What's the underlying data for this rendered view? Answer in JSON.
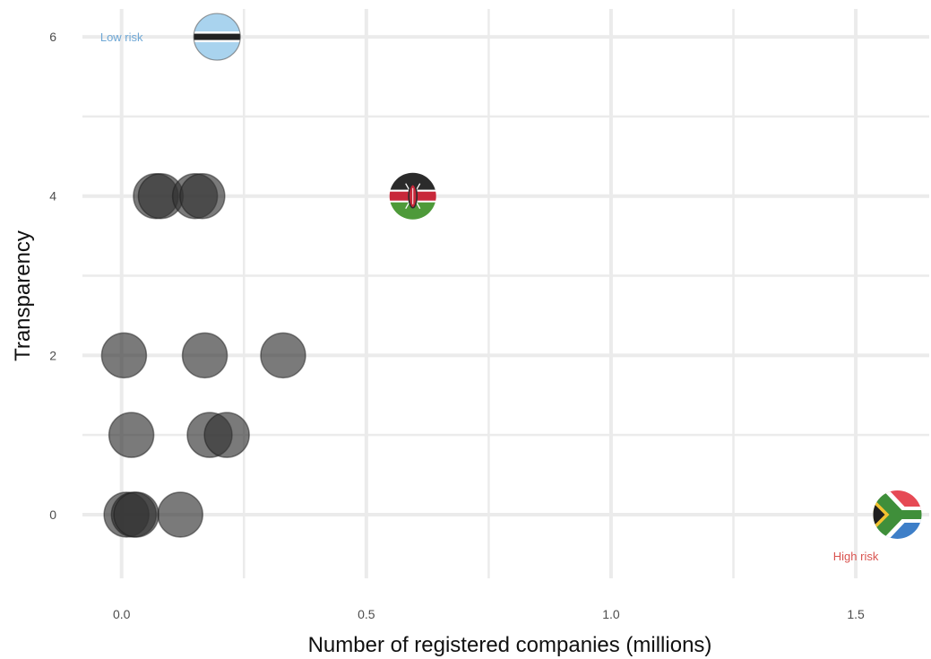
{
  "chart_data": {
    "type": "scatter",
    "title": "",
    "xlabel": "Number of registered companies (millions)",
    "ylabel": "Transparency",
    "xlim": [
      -0.08,
      1.65
    ],
    "ylim": [
      -0.8,
      6.35
    ],
    "x_ticks": [
      0.0,
      0.5,
      1.0,
      1.5
    ],
    "x_tick_labels": [
      "0.0",
      "0.5",
      "1.0",
      "1.5"
    ],
    "y_ticks": [
      0,
      2,
      4,
      6
    ],
    "y_tick_labels": [
      "0",
      "2",
      "4",
      "6"
    ],
    "x_minor_ticks": [
      0.25,
      0.75,
      1.25
    ],
    "y_minor_ticks": [
      1,
      3,
      5
    ],
    "grid": true,
    "legend": "none",
    "points": [
      {
        "x": 0.01,
        "y": 0
      },
      {
        "x": 0.025,
        "y": 0
      },
      {
        "x": 0.03,
        "y": 0
      },
      {
        "x": 0.12,
        "y": 0
      },
      {
        "x": 0.02,
        "y": 1
      },
      {
        "x": 0.18,
        "y": 1
      },
      {
        "x": 0.215,
        "y": 1
      },
      {
        "x": 0.005,
        "y": 2
      },
      {
        "x": 0.17,
        "y": 2
      },
      {
        "x": 0.33,
        "y": 2
      },
      {
        "x": 0.07,
        "y": 4
      },
      {
        "x": 0.08,
        "y": 4
      },
      {
        "x": 0.15,
        "y": 4
      },
      {
        "x": 0.165,
        "y": 4
      }
    ],
    "flag_points": [
      {
        "x": 0.195,
        "y": 6,
        "flag": "botswana-flag-icon"
      },
      {
        "x": 0.595,
        "y": 4,
        "flag": "kenya-flag-icon"
      },
      {
        "x": 1.585,
        "y": 0,
        "flag": "south-africa-flag-icon"
      }
    ],
    "annotations": [
      {
        "text": "Low risk",
        "x": 0.0,
        "y": 6,
        "color": "#6fa8d6"
      },
      {
        "text": "High risk",
        "x": 1.5,
        "y": -0.52,
        "color": "#d9534f"
      }
    ],
    "colors": {
      "point": "#333333",
      "grid": "#ebebeb",
      "low_risk": "#6fa8d6",
      "high_risk": "#d9534f"
    }
  }
}
